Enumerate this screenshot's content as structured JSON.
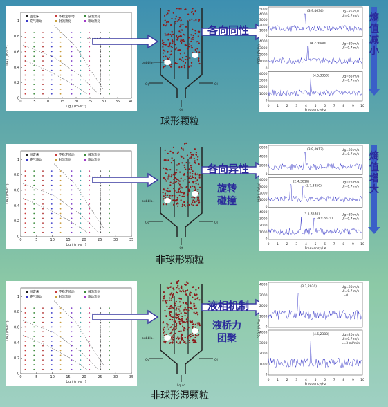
{
  "rows": [
    {
      "legend": [
        "固定床",
        "不稳定喷动",
        "鼓泡流化",
        "充气喷动",
        "射流流化",
        "喷动流化"
      ],
      "phase": {
        "xlabel": "Ug / (m·s⁻¹)",
        "ylabel": "Ua / (m·s⁻¹)",
        "xticks": [
          "0",
          "5",
          "10",
          "15",
          "20",
          "25",
          "30",
          "35",
          "40"
        ],
        "yticks": [
          "0",
          "0.2",
          "0.4",
          "0.6",
          "0.8",
          "1"
        ]
      },
      "reactor_labels": [
        "bubble",
        "Qg",
        "Ql",
        "Qf"
      ],
      "arrow1_text": [
        "各向同性"
      ],
      "psd": [
        {
          "peak": "(3.9,4634)",
          "params": [
            "Ug=25 m/s",
            "Ul=0.7 m/s"
          ],
          "yticks": [
            "5000",
            "4000",
            "3000",
            "2000",
            "1000",
            "0"
          ]
        },
        {
          "peak": "(4.2,3680)",
          "params": [
            "Ug=30 m/s",
            "Ul=0.7 m/s"
          ],
          "yticks": [
            "4000",
            "3000",
            "2000",
            "1000",
            "0"
          ]
        },
        {
          "peak": "(4.5,3350)",
          "params": [
            "Ug=35 m/s",
            "Ul=0.7 m/s"
          ],
          "yticks": [
            "4000",
            "3000",
            "2000",
            "1000",
            "0"
          ]
        }
      ],
      "psd_ylabel": "PSD / (Pa²/s)",
      "psd_xlabel": "Frequency/Hz",
      "psd_xticks": [
        "0",
        "1",
        "2",
        "3",
        "4",
        "5",
        "6",
        "7",
        "8",
        "9",
        "10"
      ],
      "side_label": "熵值减小",
      "caption": "球形颗粒"
    },
    {
      "legend": [
        "固定床",
        "不稳定喷动",
        "鼓泡流化",
        "充气喷动",
        "射流流化",
        "喷动流化"
      ],
      "phase": {
        "xlabel": "Ug / (m·s⁻¹)",
        "ylabel": "Ua / (m·s⁻¹)",
        "xticks": [
          "0",
          "5",
          "10",
          "15",
          "20",
          "25",
          "30",
          "35"
        ],
        "yticks": [
          "0",
          "0.2",
          "0.4",
          "0.6",
          "0.8",
          "1"
        ]
      },
      "reactor_labels": [
        "bubble",
        "Qg",
        "Ql",
        "Qf"
      ],
      "arrow1_text": [
        "各向异性",
        "旋转",
        "碰撞"
      ],
      "psd": [
        {
          "peak": "(3.9,4913)",
          "params": [
            "Ug=20 m/s",
            "Ul=0.7 m/s"
          ],
          "yticks": [
            "6000",
            "4000",
            "2000",
            "0"
          ]
        },
        {
          "peak": "(2.4,3816)",
          "peak2": "(3.7,3850)",
          "params": [
            "Ug=25 m/s",
            "Ul=0.7 m/s"
          ],
          "yticks": [
            "4000",
            "3000",
            "2000",
            "1000",
            "0"
          ]
        },
        {
          "peak": "(3.5,3586)",
          "peak2": "(4.9,3579)",
          "params": [
            "Ug=30 m/s",
            "Ul=0.7 m/s"
          ],
          "yticks": [
            "4000",
            "3000",
            "2000",
            "1000",
            "0"
          ]
        }
      ],
      "psd_ylabel": "PSD / (Pa²/s)",
      "psd_xlabel": "Frequency/Hz",
      "psd_xticks": [
        "0",
        "1",
        "2",
        "3",
        "4",
        "5",
        "6",
        "7",
        "8",
        "9",
        "10"
      ],
      "side_label": "熵值增大",
      "caption": "非球形颗粒"
    },
    {
      "legend": [
        "固定床",
        "不稳定喷动",
        "鼓泡流化",
        "充气喷动",
        "射流流化",
        "喷动流化"
      ],
      "phase": {
        "xlabel": "Ug / (m·s⁻¹)",
        "ylabel": "Ua / (m·s⁻¹)",
        "xticks": [
          "0",
          "5",
          "10",
          "15",
          "20",
          "25",
          "30",
          "35"
        ],
        "yticks": [
          "0",
          "0.2",
          "0.4",
          "0.6",
          "0.8",
          "1"
        ]
      },
      "reactor_labels": [
        "bubble",
        "Qg",
        "Ql",
        "liquid"
      ],
      "arrow1_text": [
        "液相机制",
        "液桥力",
        "团聚"
      ],
      "psd": [
        {
          "peak": "(3.2,2930)",
          "params": [
            "Ug=20 m/s",
            "Ul=0.7 m/s",
            "L=0"
          ],
          "yticks": [
            "4000",
            "3000",
            "2000",
            "1000",
            "0"
          ]
        },
        {
          "peak": "(4.5,2388)",
          "params": [
            "Ug=20 m/s",
            "Ul=0.7 m/s",
            "L=3 ml/min"
          ],
          "yticks": [
            "4000",
            "3000",
            "2000",
            "1000",
            "0"
          ]
        }
      ],
      "psd_ylabel": "PSD / (Pa²/s)",
      "psd_xlabel": "Frequency/Hz",
      "psd_xticks": [
        "0",
        "1",
        "2",
        "3",
        "4",
        "5",
        "6",
        "7",
        "8",
        "9",
        "10"
      ],
      "caption": "非球形湿颗粒"
    }
  ],
  "colors": {
    "arrow_fill": "#ffffff",
    "arrow_stroke": "#3a3aa0",
    "text_blue": "#2a2a9a",
    "down_arrow": "#3a5fc8",
    "particle": "#8b1a1a"
  }
}
